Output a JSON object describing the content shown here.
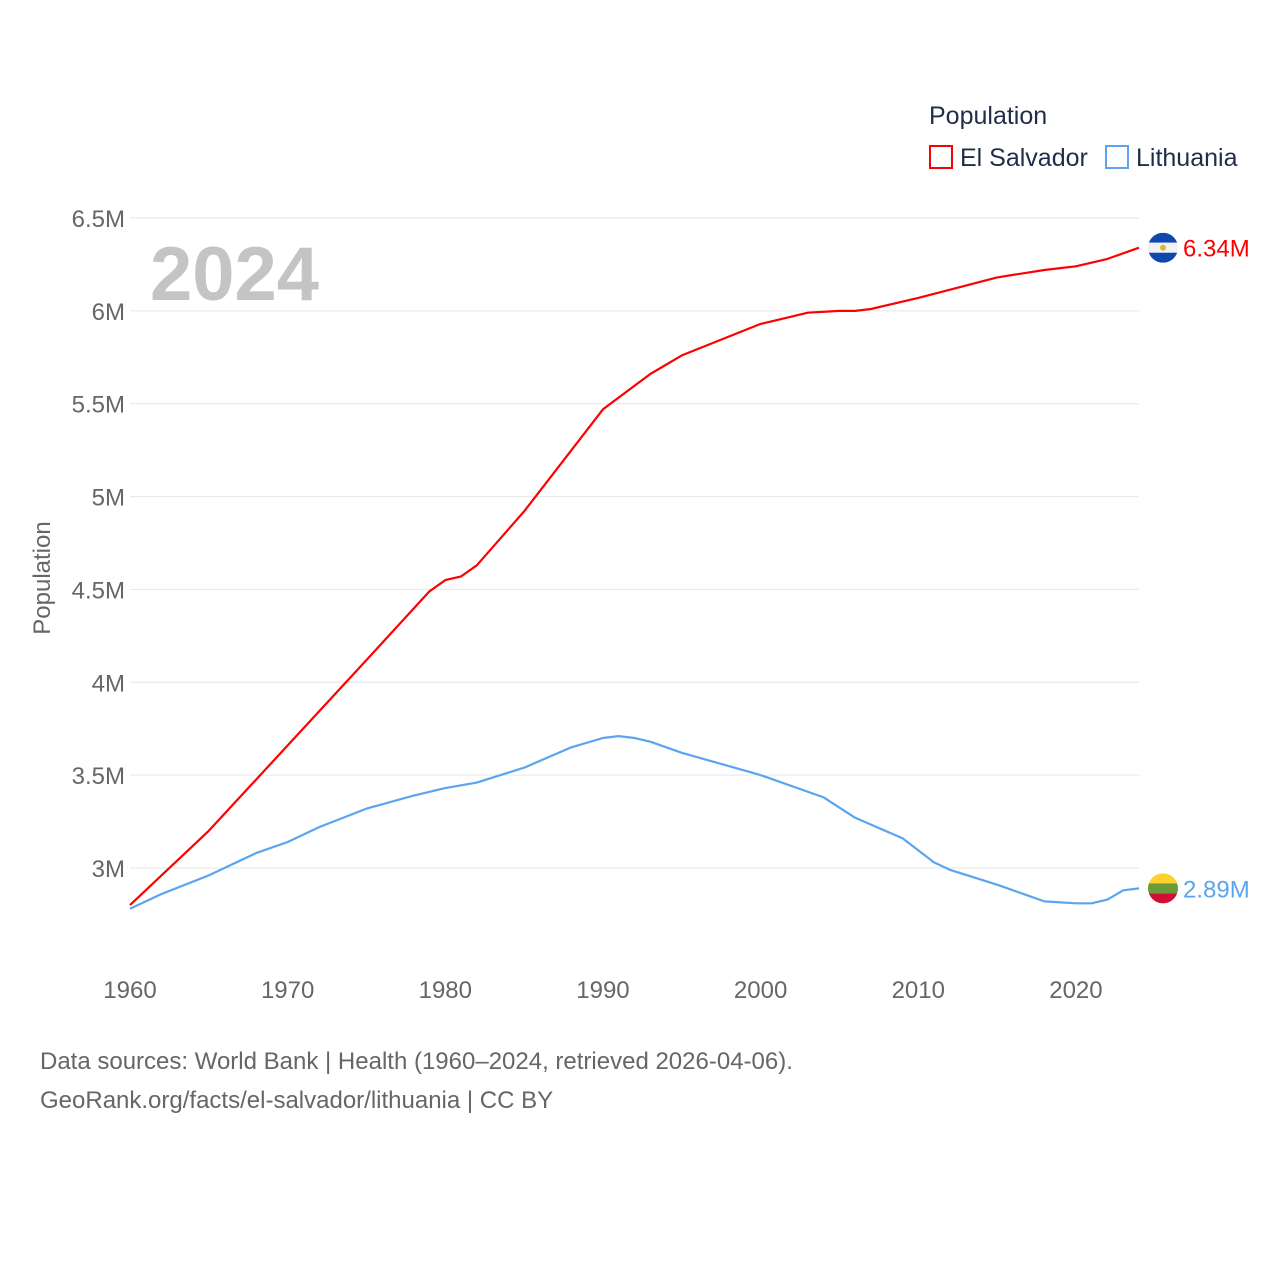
{
  "chart_data": {
    "type": "line",
    "title": "Population",
    "ylabel": "Population",
    "xlabel": "",
    "year_label": "2024",
    "xlim": [
      1960,
      2024
    ],
    "ylim": [
      2.6,
      6.5
    ],
    "x_ticks": [
      1960,
      1970,
      1980,
      1990,
      2000,
      2010,
      2020
    ],
    "x_tick_labels": [
      "1960",
      "1970",
      "1980",
      "1990",
      "2000",
      "2010",
      "2020"
    ],
    "y_ticks": [
      3,
      3.5,
      4,
      4.5,
      5,
      5.5,
      6,
      6.5
    ],
    "y_tick_labels": [
      "3M",
      "3.5M",
      "4M",
      "4.5M",
      "5M",
      "5.5M",
      "6M",
      "6.5M"
    ],
    "grid": true,
    "legend_position": "top-right",
    "series": [
      {
        "name": "El Salvador",
        "color": "#ff0000",
        "end_label": "6.34M",
        "flag": "el-salvador-flag",
        "points": [
          [
            1960,
            2.8
          ],
          [
            1965,
            3.2
          ],
          [
            1970,
            3.66
          ],
          [
            1975,
            4.12
          ],
          [
            1979,
            4.49
          ],
          [
            1980,
            4.55
          ],
          [
            1981,
            4.57
          ],
          [
            1982,
            4.63
          ],
          [
            1985,
            4.92
          ],
          [
            1990,
            5.47
          ],
          [
            1993,
            5.66
          ],
          [
            1995,
            5.76
          ],
          [
            2000,
            5.93
          ],
          [
            2003,
            5.99
          ],
          [
            2005,
            6.0
          ],
          [
            2006,
            6.0
          ],
          [
            2007,
            6.01
          ],
          [
            2010,
            6.07
          ],
          [
            2015,
            6.18
          ],
          [
            2018,
            6.22
          ],
          [
            2019,
            6.23
          ],
          [
            2020,
            6.24
          ],
          [
            2022,
            6.28
          ],
          [
            2024,
            6.34
          ]
        ]
      },
      {
        "name": "Lithuania",
        "color": "#5ba4ee",
        "end_label": "2.89M",
        "flag": "lithuania-flag",
        "points": [
          [
            1960,
            2.78
          ],
          [
            1962,
            2.86
          ],
          [
            1965,
            2.96
          ],
          [
            1968,
            3.08
          ],
          [
            1970,
            3.14
          ],
          [
            1972,
            3.22
          ],
          [
            1975,
            3.32
          ],
          [
            1978,
            3.39
          ],
          [
            1980,
            3.43
          ],
          [
            1982,
            3.46
          ],
          [
            1985,
            3.54
          ],
          [
            1988,
            3.65
          ],
          [
            1990,
            3.7
          ],
          [
            1991,
            3.71
          ],
          [
            1992,
            3.7
          ],
          [
            1993,
            3.68
          ],
          [
            1995,
            3.62
          ],
          [
            2000,
            3.5
          ],
          [
            2004,
            3.38
          ],
          [
            2006,
            3.27
          ],
          [
            2009,
            3.16
          ],
          [
            2011,
            3.03
          ],
          [
            2012,
            2.99
          ],
          [
            2015,
            2.91
          ],
          [
            2017,
            2.85
          ],
          [
            2018,
            2.82
          ],
          [
            2020,
            2.81
          ],
          [
            2021,
            2.81
          ],
          [
            2022,
            2.83
          ],
          [
            2023,
            2.88
          ],
          [
            2024,
            2.89
          ]
        ]
      }
    ]
  },
  "footer": {
    "line1": "Data sources: World Bank | Health (1960–2024, retrieved 2026-04-06).",
    "line2": "GeoRank.org/facts/el-salvador/lithuania | CC BY"
  }
}
